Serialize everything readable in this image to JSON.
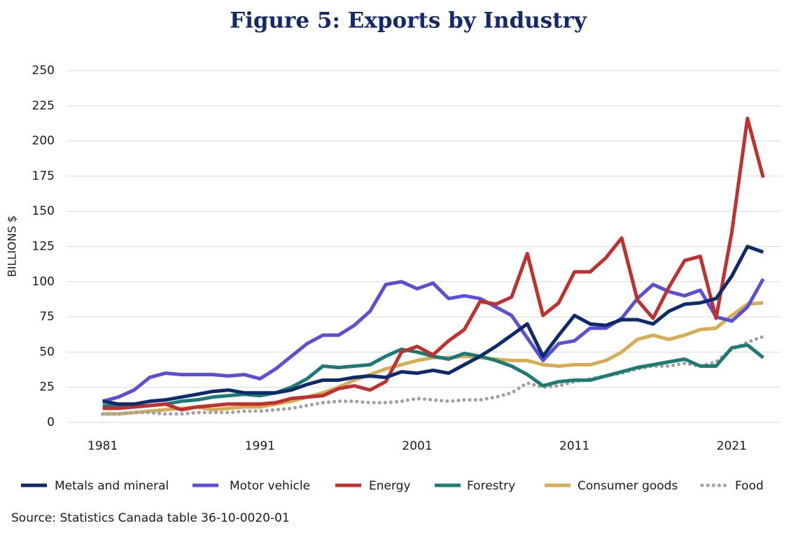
{
  "chart_data": {
    "type": "line",
    "title": "Figure 5: Exports by Industry",
    "ylabel": "BILLIONS $",
    "source": "Source: Statistics Canada table 36-10-0020-01",
    "x": [
      1981,
      1982,
      1983,
      1984,
      1985,
      1986,
      1987,
      1988,
      1989,
      1990,
      1991,
      1992,
      1993,
      1994,
      1995,
      1996,
      1997,
      1998,
      1999,
      2000,
      2001,
      2002,
      2003,
      2004,
      2005,
      2006,
      2007,
      2008,
      2009,
      2010,
      2011,
      2012,
      2013,
      2014,
      2015,
      2016,
      2017,
      2018,
      2019,
      2020,
      2021,
      2022,
      2023
    ],
    "xlim": [
      1978.7,
      2024.1
    ],
    "xticks": [
      1981,
      1991,
      2001,
      2011,
      2021
    ],
    "ylim": [
      0,
      250
    ],
    "yticks": [
      0,
      25,
      50,
      75,
      100,
      125,
      150,
      175,
      200,
      225,
      250
    ],
    "grid": true,
    "legend": "bottom",
    "series": [
      {
        "name": "Metals and mineral",
        "color": "#0d2a6b",
        "style": "solid",
        "values": [
          15,
          13,
          13,
          15,
          16,
          18,
          20,
          22,
          23,
          21,
          21,
          21,
          23,
          27,
          30,
          30,
          32,
          33,
          32,
          36,
          35,
          37,
          35,
          41,
          47,
          54,
          62,
          70,
          47,
          62,
          76,
          70,
          69,
          73,
          73,
          70,
          79,
          84,
          85,
          88,
          104,
          125,
          121
        ]
      },
      {
        "name": "Motor vehicle",
        "color": "#5b4fd8",
        "style": "solid",
        "values": [
          15,
          18,
          23,
          32,
          35,
          34,
          34,
          34,
          33,
          34,
          31,
          38,
          47,
          56,
          62,
          62,
          69,
          79,
          98,
          100,
          95,
          99,
          88,
          90,
          88,
          82,
          76,
          60,
          44,
          56,
          58,
          67,
          67,
          74,
          88,
          98,
          93,
          90,
          94,
          75,
          72,
          82,
          102
        ]
      },
      {
        "name": "Energy",
        "color": "#c0302f",
        "style": "solid",
        "values": [
          10,
          10,
          11,
          12,
          13,
          9,
          11,
          12,
          13,
          13,
          13,
          14,
          17,
          18,
          19,
          24,
          26,
          23,
          29,
          50,
          54,
          48,
          58,
          66,
          86,
          84,
          89,
          120,
          76,
          85,
          107,
          107,
          117,
          131,
          87,
          74,
          96,
          115,
          118,
          74,
          135,
          216,
          174
        ]
      },
      {
        "name": "Forestry",
        "color": "#1c7b74",
        "style": "solid",
        "values": [
          12,
          11,
          11,
          12,
          13,
          15,
          16,
          18,
          19,
          20,
          19,
          21,
          25,
          31,
          40,
          39,
          40,
          41,
          47,
          52,
          50,
          47,
          45,
          49,
          47,
          44,
          40,
          34,
          26,
          29,
          30,
          30,
          33,
          36,
          39,
          41,
          43,
          45,
          40,
          40,
          53,
          55,
          46
        ]
      },
      {
        "name": "Consumer goods",
        "color": "#d4ad55",
        "style": "solid",
        "values": [
          6,
          6,
          7,
          8,
          9,
          10,
          11,
          9,
          10,
          11,
          11,
          13,
          15,
          18,
          21,
          25,
          30,
          34,
          38,
          41,
          44,
          46,
          46,
          47,
          46,
          45,
          44,
          44,
          41,
          40,
          41,
          41,
          44,
          50,
          59,
          62,
          59,
          62,
          66,
          67,
          76,
          84,
          85
        ]
      },
      {
        "name": "Food",
        "color": "#a0a0a0",
        "style": "dotted",
        "values": [
          6,
          6,
          7,
          7,
          6,
          6,
          7,
          7,
          7,
          8,
          8,
          9,
          10,
          12,
          14,
          15,
          15,
          14,
          14,
          15,
          17,
          16,
          15,
          16,
          16,
          18,
          21,
          28,
          25,
          26,
          29,
          31,
          33,
          35,
          38,
          40,
          40,
          42,
          40,
          43,
          52,
          57,
          61
        ]
      }
    ]
  }
}
